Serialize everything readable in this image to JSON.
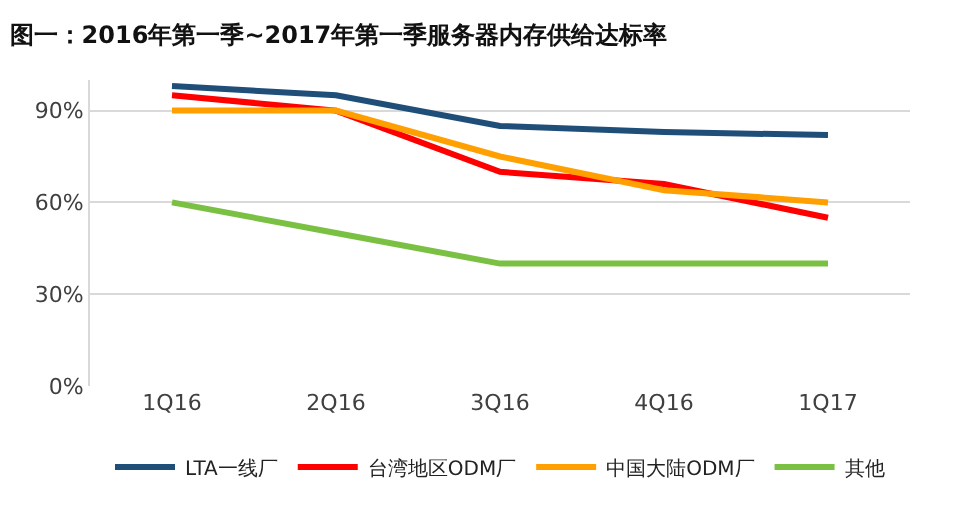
{
  "chart_data": {
    "type": "line",
    "title": "图一：2016年第一季~2017年第一季服务器内存供给达标率",
    "categories": [
      "1Q16",
      "2Q16",
      "3Q16",
      "4Q16",
      "1Q17"
    ],
    "series": [
      {
        "name": "LTA一线厂",
        "color": "#1f4e79",
        "values": [
          98,
          95,
          85,
          83,
          82
        ]
      },
      {
        "name": "台湾地区ODM厂",
        "color": "#ff0000",
        "values": [
          95,
          90,
          70,
          66,
          55
        ]
      },
      {
        "name": "中国大陆ODM厂",
        "color": "#ffa000",
        "values": [
          90,
          90,
          75,
          64,
          60
        ]
      },
      {
        "name": "其他",
        "color": "#7ac143",
        "values": [
          60,
          50,
          40,
          40,
          40
        ]
      }
    ],
    "ylim": [
      0,
      100
    ],
    "yticks": [
      {
        "value": 0,
        "label": "0%"
      },
      {
        "value": 30,
        "label": "30%"
      },
      {
        "value": 60,
        "label": "60%"
      },
      {
        "value": 90,
        "label": "90%"
      }
    ],
    "grid": "y",
    "legend": "bottom",
    "marker": "none",
    "line_style": "solid"
  }
}
